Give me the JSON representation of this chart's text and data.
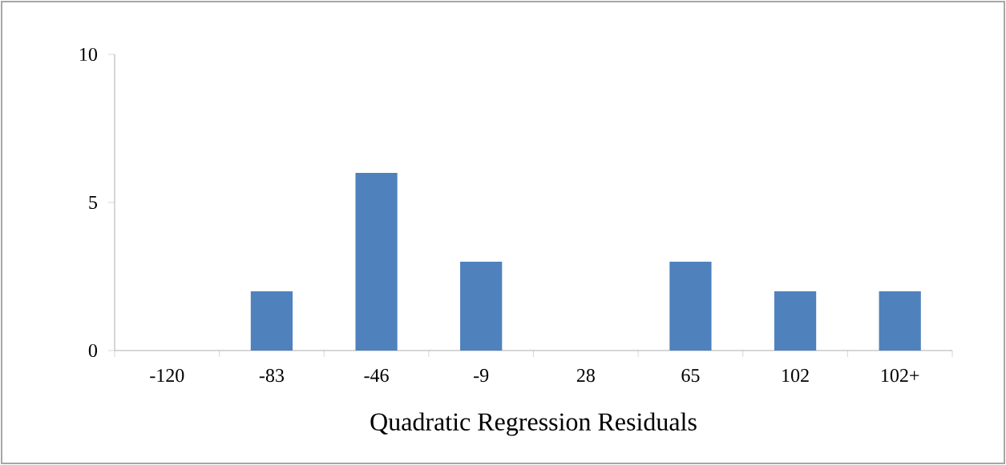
{
  "chart_data": {
    "type": "bar",
    "xlabel": "Quadratic Regression Residuals",
    "categories": [
      "-120",
      "-83",
      "-46",
      "-9",
      "28",
      "65",
      "102",
      "102+"
    ],
    "values": [
      0,
      2,
      6,
      3,
      0,
      3,
      2,
      2
    ],
    "color": "#4f81bd",
    "ylim": [
      0,
      10
    ],
    "yticks": [
      0,
      5,
      10
    ]
  }
}
